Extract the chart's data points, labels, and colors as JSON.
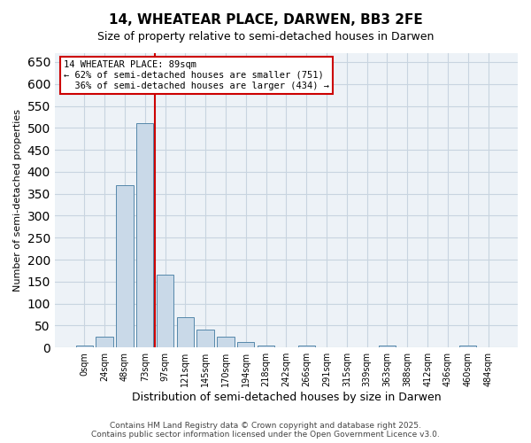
{
  "title_line1": "14, WHEATEAR PLACE, DARWEN, BB3 2FE",
  "title_line2": "Size of property relative to semi-detached houses in Darwen",
  "xlabel": "Distribution of semi-detached houses by size in Darwen",
  "ylabel": "Number of semi-detached properties",
  "bar_color": "#c9d9e8",
  "bar_edge_color": "#5588aa",
  "categories": [
    "0sqm",
    "24sqm",
    "48sqm",
    "73sqm",
    "97sqm",
    "121sqm",
    "145sqm",
    "170sqm",
    "194sqm",
    "218sqm",
    "242sqm",
    "266sqm",
    "291sqm",
    "315sqm",
    "339sqm",
    "363sqm",
    "388sqm",
    "412sqm",
    "436sqm",
    "460sqm",
    "484sqm"
  ],
  "values": [
    5,
    25,
    370,
    510,
    165,
    70,
    40,
    25,
    12,
    5,
    0,
    5,
    0,
    0,
    0,
    5,
    0,
    0,
    0,
    5,
    0
  ],
  "ylim": [
    0,
    670
  ],
  "yticks": [
    0,
    50,
    100,
    150,
    200,
    250,
    300,
    350,
    400,
    450,
    500,
    550,
    600,
    650
  ],
  "property_label": "14 WHEATEAR PLACE: 89sqm",
  "pct_smaller": 62,
  "n_smaller": 751,
  "pct_larger": 36,
  "n_larger": 434,
  "red_line_x": 3.5,
  "annotation_box_color": "#cc0000",
  "bg_color": "#edf2f7",
  "grid_color": "#c8d4e0",
  "footer_line1": "Contains HM Land Registry data © Crown copyright and database right 2025.",
  "footer_line2": "Contains public sector information licensed under the Open Government Licence v3.0."
}
